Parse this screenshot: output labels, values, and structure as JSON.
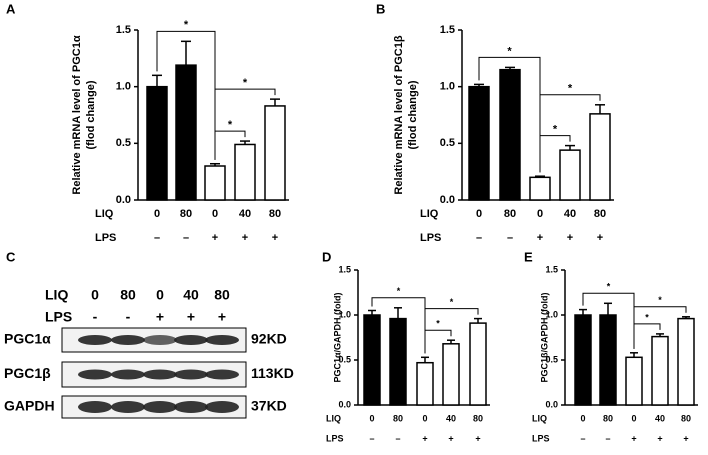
{
  "chart_data": [
    {
      "type": "bar",
      "panel_label": "A",
      "y_label": [
        "Relative mRNA level of PGC1α",
        "(flod change)"
      ],
      "values": [
        1.0,
        1.19,
        0.3,
        0.49,
        0.83
      ],
      "errors": [
        0.1,
        0.21,
        0.02,
        0.03,
        0.06
      ],
      "colors": [
        "#000000",
        "#000000",
        "#ffffff",
        "#ffffff",
        "#ffffff"
      ],
      "ylim": [
        0,
        1.5
      ],
      "yticks": [
        {
          "value": 0,
          "label": "0.0"
        },
        {
          "value": 0.5,
          "label": "0.5"
        },
        {
          "value": 1,
          "label": "1.0"
        },
        {
          "value": 1.5,
          "label": "1.5"
        }
      ],
      "rows": [
        {
          "name": "LIQ",
          "labels": [
            "0",
            "80",
            "0",
            "40",
            "80"
          ]
        },
        {
          "name": "LPS",
          "labels": [
            "–",
            "–",
            "+",
            "+",
            "+"
          ]
        }
      ],
      "annotations": [
        "*",
        "*",
        "*"
      ]
    },
    {
      "type": "bar",
      "panel_label": "B",
      "y_label": [
        "Relative mRNA level of PGC1β",
        "(flod change)"
      ],
      "values": [
        1.0,
        1.15,
        0.2,
        0.44,
        0.76
      ],
      "errors": [
        0.02,
        0.02,
        0.01,
        0.04,
        0.08
      ],
      "colors": [
        "#000000",
        "#000000",
        "#ffffff",
        "#ffffff",
        "#ffffff"
      ],
      "ylim": [
        0,
        1.5
      ],
      "yticks": [
        {
          "value": 0,
          "label": "0.0"
        },
        {
          "value": 0.5,
          "label": "0.5"
        },
        {
          "value": 1,
          "label": "1.0"
        },
        {
          "value": 1.5,
          "label": "1.5"
        }
      ],
      "rows": [
        {
          "name": "LIQ",
          "labels": [
            "0",
            "80",
            "0",
            "40",
            "80"
          ]
        },
        {
          "name": "LPS",
          "labels": [
            "–",
            "–",
            "+",
            "+",
            "+"
          ]
        }
      ],
      "annotations": [
        "*",
        "*",
        "*"
      ]
    },
    {
      "type": "bar",
      "panel_label": "D",
      "y_label": [
        "PGC1α/GAPDH (fold)"
      ],
      "values": [
        1.0,
        0.96,
        0.47,
        0.68,
        0.91
      ],
      "errors": [
        0.05,
        0.12,
        0.06,
        0.04,
        0.05
      ],
      "colors": [
        "#000000",
        "#000000",
        "#ffffff",
        "#ffffff",
        "#ffffff"
      ],
      "ylim": [
        0,
        1.5
      ],
      "yticks": [
        {
          "value": 0,
          "label": "0.0"
        },
        {
          "value": 0.5,
          "label": "0.5"
        },
        {
          "value": 1,
          "label": "1.0"
        },
        {
          "value": 1.5,
          "label": "1.5"
        }
      ],
      "rows": [
        {
          "name": "LIQ",
          "labels": [
            "0",
            "80",
            "0",
            "40",
            "80"
          ]
        },
        {
          "name": "LPS",
          "labels": [
            "–",
            "–",
            "+",
            "+",
            "+"
          ]
        }
      ],
      "annotations": [
        "*",
        "*",
        "*"
      ]
    },
    {
      "type": "bar",
      "panel_label": "E",
      "y_label": [
        "PGC1β/GAPDH (fold)"
      ],
      "values": [
        1.0,
        1.0,
        0.53,
        0.76,
        0.96
      ],
      "errors": [
        0.06,
        0.13,
        0.05,
        0.03,
        0.02
      ],
      "colors": [
        "#000000",
        "#000000",
        "#ffffff",
        "#ffffff",
        "#ffffff"
      ],
      "ylim": [
        0,
        1.5
      ],
      "yticks": [
        {
          "value": 0,
          "label": "0.0"
        },
        {
          "value": 0.5,
          "label": "0.5"
        },
        {
          "value": 1,
          "label": "1.0"
        },
        {
          "value": 1.5,
          "label": "1.5"
        }
      ],
      "rows": [
        {
          "name": "LIQ",
          "labels": [
            "0",
            "80",
            "0",
            "40",
            "80"
          ]
        },
        {
          "name": "LPS",
          "labels": [
            "–",
            "–",
            "+",
            "+",
            "+"
          ]
        }
      ],
      "annotations": [
        "*",
        "*",
        "*"
      ]
    }
  ],
  "blot": {
    "panel_label": "C",
    "rows": [
      {
        "name": "LIQ",
        "labels": [
          "0",
          "80",
          "0",
          "40",
          "80"
        ]
      },
      {
        "name": "LPS",
        "labels": [
          "-",
          "-",
          "+",
          "+",
          "+"
        ]
      }
    ],
    "bands": [
      {
        "name": "PGC1α",
        "size": "92KD"
      },
      {
        "name": "PGC1β",
        "size": "113KD"
      },
      {
        "name": "GAPDH",
        "size": "37KD"
      }
    ]
  }
}
